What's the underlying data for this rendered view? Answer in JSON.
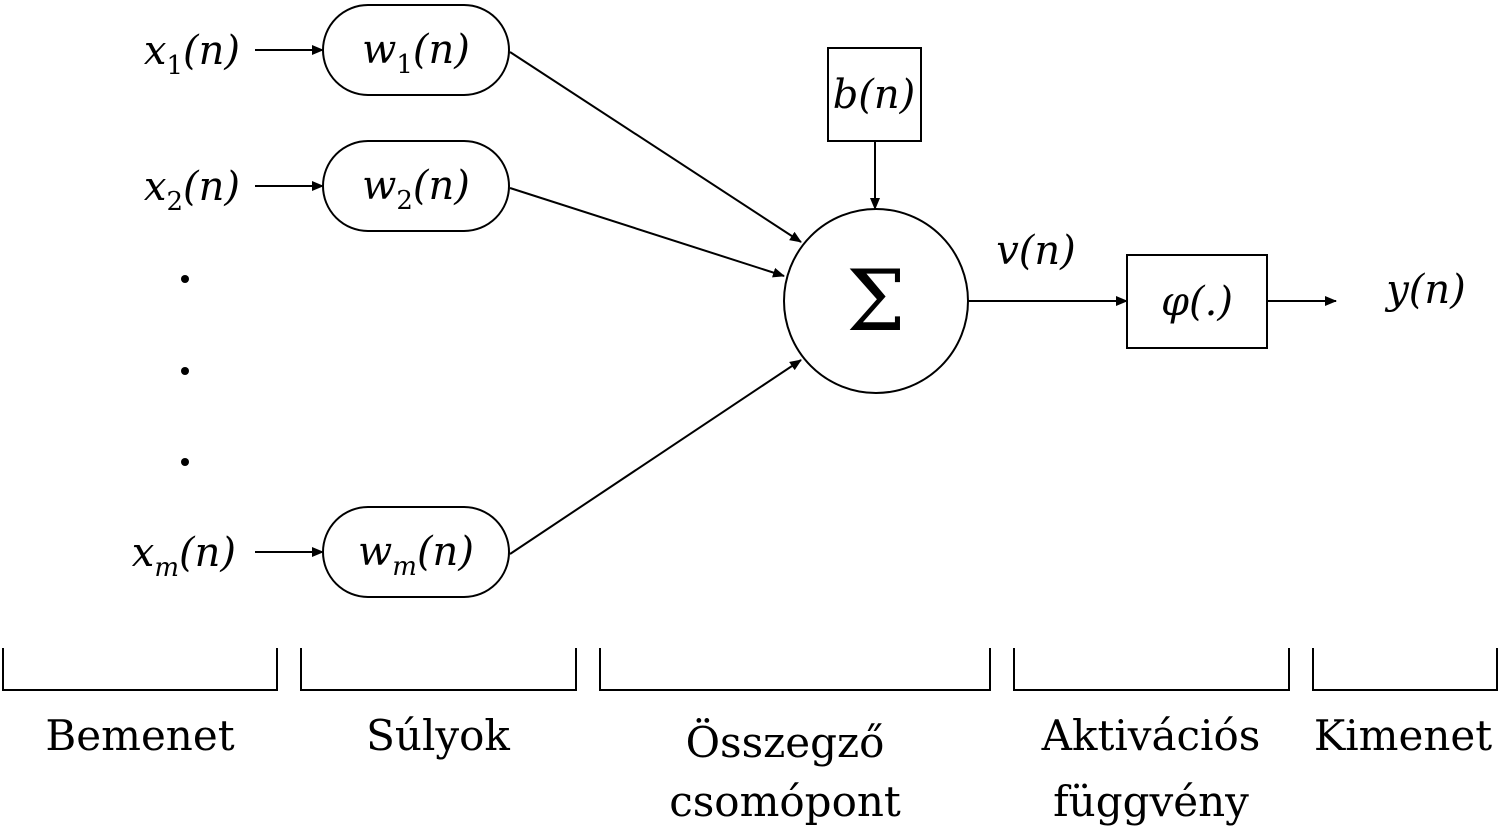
{
  "inputs": [
    {
      "symbol": "x",
      "subscript": "1",
      "arg": "(n)"
    },
    {
      "symbol": "x",
      "subscript": "2",
      "arg": "(n)"
    },
    {
      "symbol": "x",
      "subscript": "m",
      "arg": "(n)"
    }
  ],
  "weights": [
    {
      "symbol": "w",
      "subscript": "1",
      "arg": "(n)"
    },
    {
      "symbol": "w",
      "subscript": "2",
      "arg": "(n)"
    },
    {
      "symbol": "w",
      "subscript": "m",
      "arg": "(n)"
    }
  ],
  "bias": {
    "label": "b(n)"
  },
  "summing_node": {
    "symbol": "Σ"
  },
  "induced_field": {
    "label": "v(n)"
  },
  "activation": {
    "label": "φ(.)"
  },
  "output": {
    "label": "y(n)"
  },
  "sections": [
    {
      "lines": [
        "Bemenet"
      ]
    },
    {
      "lines": [
        "Súlyok"
      ]
    },
    {
      "lines": [
        "Összegző",
        "csomópont"
      ]
    },
    {
      "lines": [
        "Aktivációs",
        "függvény"
      ]
    },
    {
      "lines": [
        "Kimenet"
      ]
    }
  ]
}
